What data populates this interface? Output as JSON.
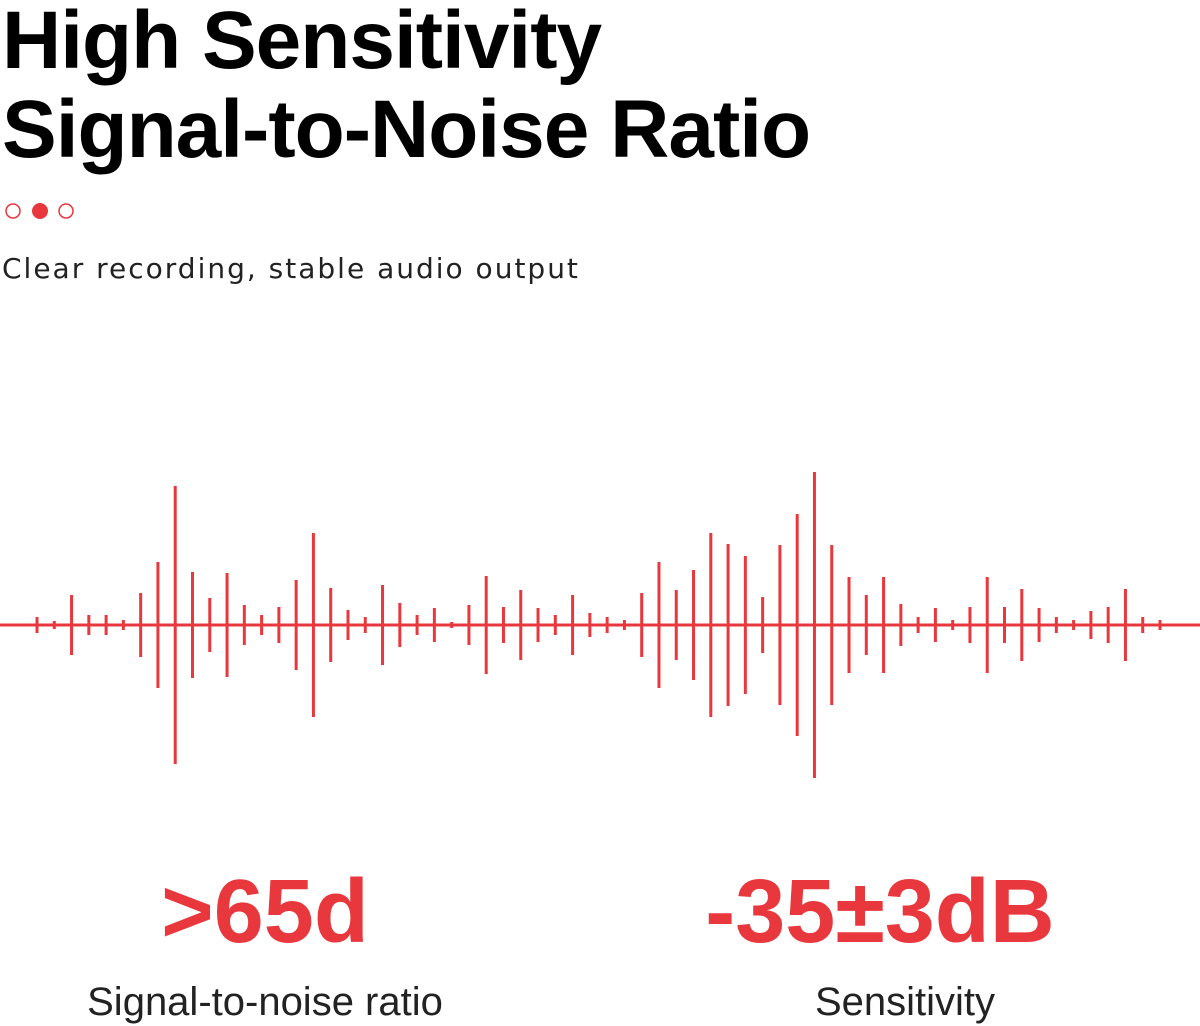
{
  "header": {
    "title_line1": "High Sensitivity",
    "title_line2": "Signal-to-Noise Ratio",
    "subtitle": "Clear recording, stable audio output"
  },
  "stats": [
    {
      "value": ">65d",
      "label": "Signal-to-noise ratio"
    },
    {
      "value": "-35±3dB",
      "label": "Sensitivity"
    }
  ]
}
